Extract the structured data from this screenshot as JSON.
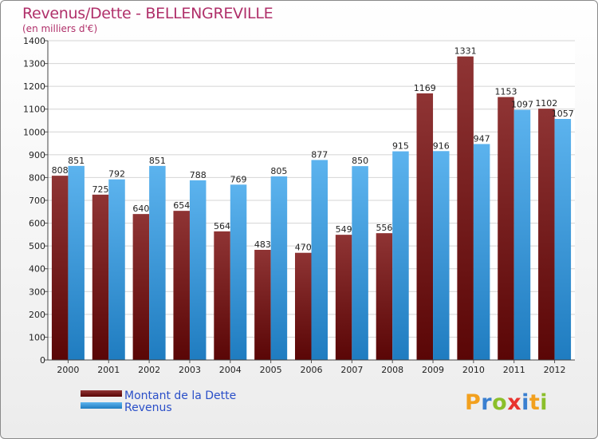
{
  "chart_data": {
    "type": "bar",
    "title": "Revenus/Dette - BELLENGREVILLE",
    "subtitle": "(en milliers d'€)",
    "categories": [
      "2000",
      "2001",
      "2002",
      "2003",
      "2004",
      "2005",
      "2006",
      "2007",
      "2008",
      "2009",
      "2010",
      "2011",
      "2012"
    ],
    "series": [
      {
        "name": "Montant de la Dette",
        "color": "#7a1b1b",
        "values": [
          808,
          725,
          640,
          654,
          564,
          483,
          470,
          549,
          556,
          1169,
          1331,
          1153,
          1102
        ]
      },
      {
        "name": "Revenus",
        "color": "#3a9ee0",
        "values": [
          851,
          792,
          851,
          788,
          769,
          805,
          877,
          850,
          915,
          916,
          947,
          1097,
          1057
        ]
      }
    ],
    "ylim": [
      0,
      1400
    ],
    "yticks": [
      0,
      100,
      200,
      300,
      400,
      500,
      600,
      700,
      800,
      900,
      1000,
      1100,
      1200,
      1300,
      1400
    ],
    "grid": true,
    "legend_position": "bottom-left",
    "xlabel": "",
    "ylabel": ""
  },
  "logo": {
    "letters": [
      "P",
      "r",
      "o",
      "x",
      "i",
      "t",
      "i"
    ],
    "colors": [
      "#f2a01e",
      "#3a7fd0",
      "#8bbf2a",
      "#e8332e",
      "#3a7fd0",
      "#f2a01e",
      "#8bbf2a"
    ]
  }
}
